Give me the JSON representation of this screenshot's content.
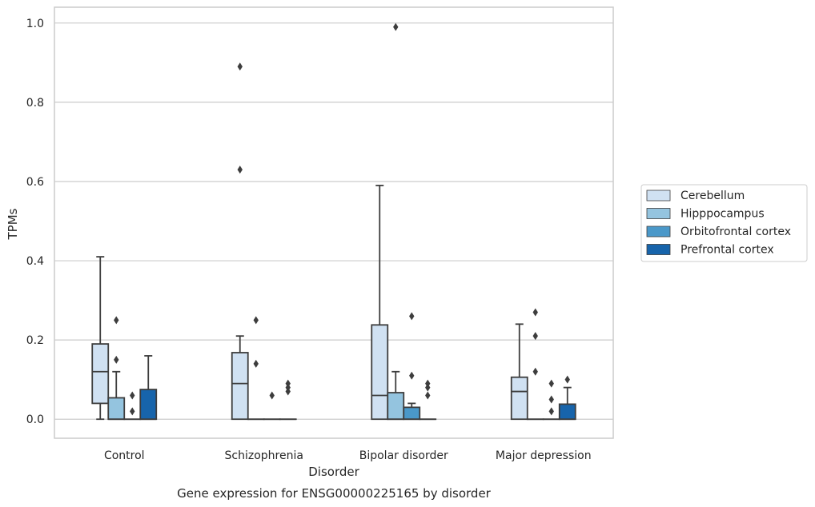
{
  "chart_data": {
    "type": "box",
    "caption": "Gene expression for ENSG00000225165 by disorder",
    "xlabel": "Disorder",
    "ylabel": "TPMs",
    "ylim": [
      -0.048,
      1.04
    ],
    "yticks": [
      0.0,
      0.2,
      0.4,
      0.6,
      0.8,
      1.0
    ],
    "ytick_labels": [
      "0.0",
      "0.2",
      "0.4",
      "0.6",
      "0.8",
      "1.0"
    ],
    "grid": "horizontal",
    "legend_position": "right",
    "categories": [
      "Control",
      "Schizophrenia",
      "Bipolar disorder",
      "Major depression"
    ],
    "series": [
      {
        "name": "Cerebellum",
        "color": "#d0e1f2",
        "boxes": [
          {
            "q1": 0.04,
            "median": 0.12,
            "q3": 0.19,
            "whisker_low": 0.0,
            "whisker_high": 0.41,
            "outliers": []
          },
          {
            "q1": 0.0,
            "median": 0.09,
            "q3": 0.168,
            "whisker_low": 0.0,
            "whisker_high": 0.21,
            "outliers": [
              0.63,
              0.89
            ]
          },
          {
            "q1": 0.0,
            "median": 0.06,
            "q3": 0.238,
            "whisker_low": 0.0,
            "whisker_high": 0.59,
            "outliers": []
          },
          {
            "q1": 0.0,
            "median": 0.07,
            "q3": 0.106,
            "whisker_low": 0.0,
            "whisker_high": 0.24,
            "outliers": []
          }
        ]
      },
      {
        "name": "Hipppocampus",
        "color": "#94c4df",
        "boxes": [
          {
            "q1": 0.0,
            "median": 0.0,
            "q3": 0.054,
            "whisker_low": 0.0,
            "whisker_high": 0.12,
            "outliers": [
              0.15,
              0.25
            ]
          },
          {
            "q1": 0.0,
            "median": 0.0,
            "q3": 0.0,
            "whisker_low": 0.0,
            "whisker_high": 0.0,
            "outliers": [
              0.14,
              0.25
            ]
          },
          {
            "q1": 0.0,
            "median": 0.0,
            "q3": 0.067,
            "whisker_low": 0.0,
            "whisker_high": 0.12,
            "outliers": [
              0.99
            ]
          },
          {
            "q1": 0.0,
            "median": 0.0,
            "q3": 0.0,
            "whisker_low": 0.0,
            "whisker_high": 0.0,
            "outliers": [
              0.12,
              0.21,
              0.27
            ]
          }
        ]
      },
      {
        "name": "Orbitofrontal cortex",
        "color": "#4a98c9",
        "boxes": [
          {
            "q1": 0.0,
            "median": 0.0,
            "q3": 0.0,
            "whisker_low": 0.0,
            "whisker_high": 0.0,
            "outliers": [
              0.02,
              0.06
            ]
          },
          {
            "q1": 0.0,
            "median": 0.0,
            "q3": 0.0,
            "whisker_low": 0.0,
            "whisker_high": 0.0,
            "outliers": [
              0.06
            ]
          },
          {
            "q1": 0.0,
            "median": 0.0,
            "q3": 0.03,
            "whisker_low": 0.0,
            "whisker_high": 0.04,
            "outliers": [
              0.11,
              0.26
            ]
          },
          {
            "q1": 0.0,
            "median": 0.0,
            "q3": 0.0,
            "whisker_low": 0.0,
            "whisker_high": 0.0,
            "outliers": [
              0.02,
              0.05,
              0.09
            ]
          }
        ]
      },
      {
        "name": "Prefrontal cortex",
        "color": "#1764ab",
        "boxes": [
          {
            "q1": 0.0,
            "median": 0.0,
            "q3": 0.075,
            "whisker_low": 0.0,
            "whisker_high": 0.16,
            "outliers": []
          },
          {
            "q1": 0.0,
            "median": 0.0,
            "q3": 0.0,
            "whisker_low": 0.0,
            "whisker_high": 0.0,
            "outliers": [
              0.07,
              0.08,
              0.09
            ]
          },
          {
            "q1": 0.0,
            "median": 0.0,
            "q3": 0.0,
            "whisker_low": 0.0,
            "whisker_high": 0.0,
            "outliers": [
              0.06,
              0.08,
              0.09
            ]
          },
          {
            "q1": 0.0,
            "median": 0.0,
            "q3": 0.038,
            "whisker_low": 0.0,
            "whisker_high": 0.08,
            "outliers": [
              0.1
            ]
          }
        ]
      }
    ]
  }
}
